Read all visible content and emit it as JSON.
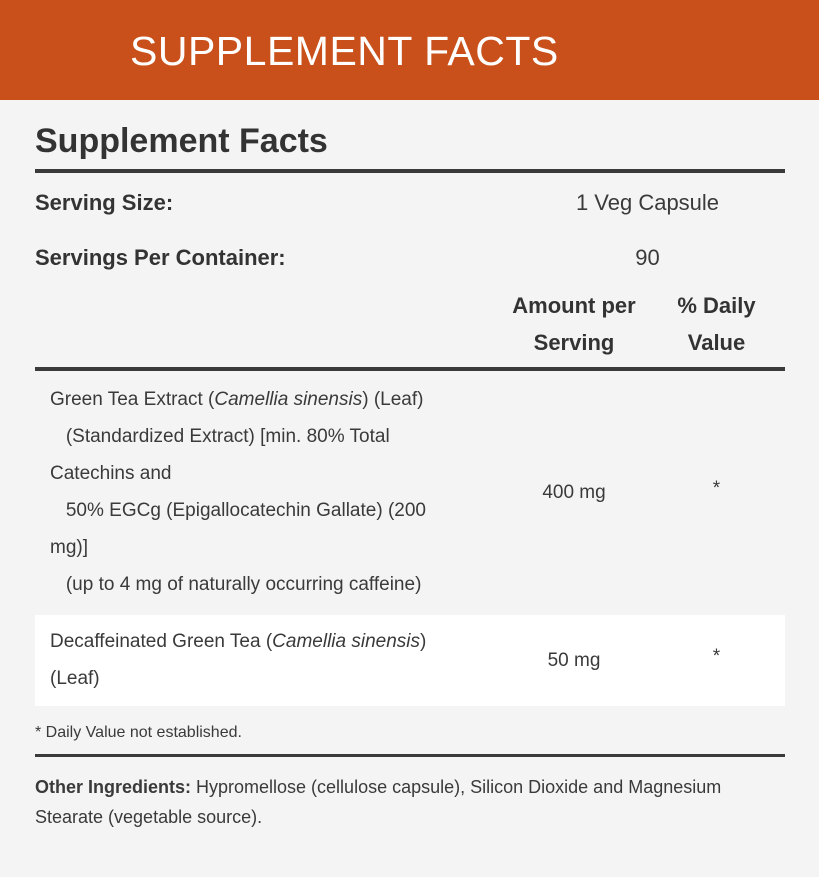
{
  "banner": {
    "title": "SUPPLEMENT FACTS",
    "color": "#c9501a"
  },
  "panel": {
    "title": "Supplement Facts",
    "serving_size": {
      "label": "Serving Size:",
      "value": "1 Veg Capsule"
    },
    "servings_per_container": {
      "label": "Servings Per Container:",
      "value": "90"
    },
    "columns": {
      "amount": [
        "Amount per",
        "Serving"
      ],
      "daily_value": [
        "% Daily",
        "Value"
      ]
    },
    "ingredients": [
      {
        "lines": [
          {
            "pre": "Green Tea Extract (",
            "italic": "Camellia sinensis",
            "post": ") (Leaf)"
          },
          {
            "pre": "   (Standardized Extract) [min. 80% Total"
          },
          {
            "pre": "Catechins and"
          },
          {
            "pre": "   50% EGCg (Epigallocatechin Gallate) (200"
          },
          {
            "pre": "mg)]"
          },
          {
            "pre": "   (up to 4 mg of naturally occurring caffeine)"
          }
        ],
        "amount": "400 mg",
        "dv": "*"
      },
      {
        "lines": [
          {
            "pre": "Decaffeinated Green Tea (",
            "italic": "Camellia sinensis",
            "post": ")"
          },
          {
            "pre": "(Leaf)"
          }
        ],
        "amount": "50 mg",
        "dv": "*"
      }
    ],
    "footnote": "* Daily Value not established.",
    "other_label": "Other Ingredients:",
    "other_text": " Hypromellose (cellulose capsule), Silicon Dioxide and Magnesium Stearate (vegetable source)."
  }
}
